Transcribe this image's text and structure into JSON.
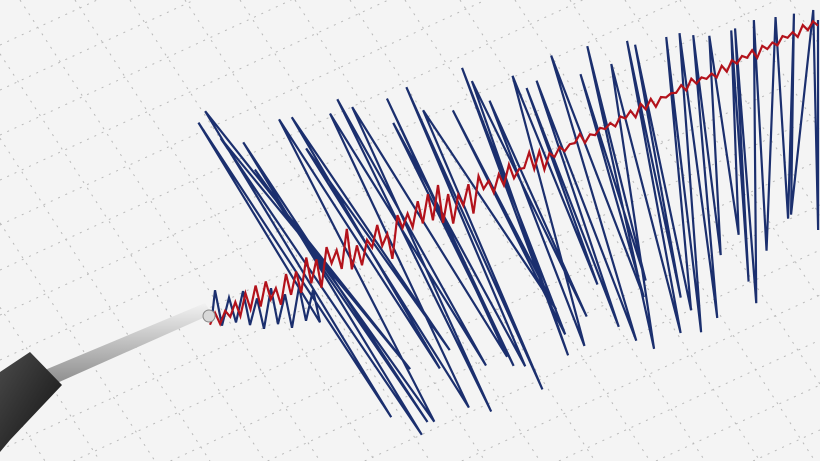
{
  "scene": {
    "subject": "seismograph",
    "colors": {
      "paper": "#f4f4f4",
      "grid": "#b9b9b9",
      "trace_blue": "#1b2f6e",
      "trace_red": "#b3121b",
      "stylus_rod": "#c9c9c9",
      "stylus_body": "#2a2a2a"
    }
  }
}
